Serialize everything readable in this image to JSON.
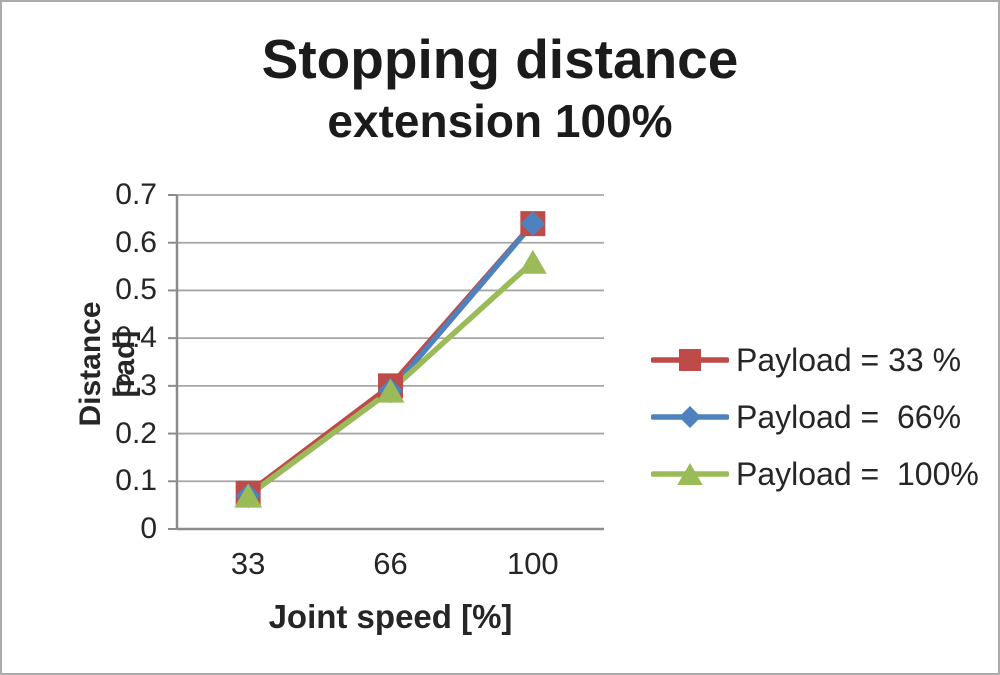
{
  "chart_data": {
    "type": "line",
    "title": "Stopping distance",
    "subtitle": "extension 100%",
    "xlabel": "Joint speed [%]",
    "ylabel": "Distance [rad]",
    "categories": [
      "33",
      "66",
      "100"
    ],
    "ylim": [
      0,
      0.7
    ],
    "ytick_interval": 0.1,
    "ytick_labels": [
      "0",
      "0.1",
      "0.2",
      "0.3",
      "0.4",
      "0.5",
      "0.6",
      "0.7"
    ],
    "grid": "horizontal",
    "legend_position": "right",
    "series": [
      {
        "name": "Payload = 33 %",
        "marker": "square",
        "color": "#BE4B48",
        "values": [
          0.075,
          0.3,
          0.64
        ]
      },
      {
        "name": "Payload =  66%",
        "marker": "diamond",
        "color": "#4F81BD",
        "values": [
          0.07,
          0.29,
          0.64
        ]
      },
      {
        "name": "Payload =  100%",
        "marker": "triangle",
        "color": "#9BBB59",
        "values": [
          0.07,
          0.29,
          0.56
        ]
      }
    ]
  },
  "colors": {
    "gridline": "#a6a6a6",
    "axis_line": "#8c8c8c",
    "text": "#262626",
    "title_text": "#1b1b1b",
    "frame_border": "#ababab",
    "background": "#ffffff"
  }
}
